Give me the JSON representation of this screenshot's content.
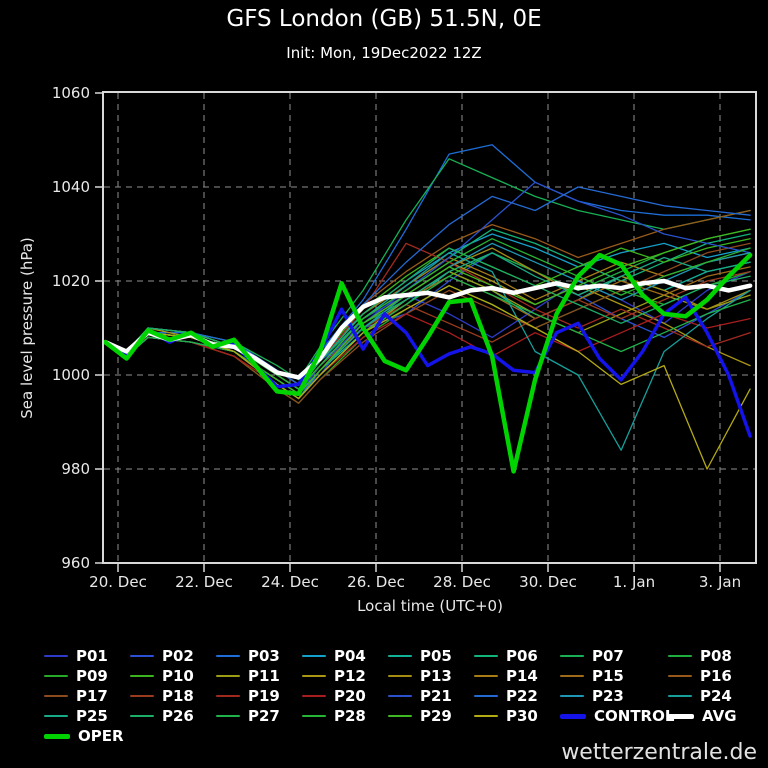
{
  "header": {
    "title": "GFS London (GB) 51.5N, 0E",
    "subtitle": "Init: Mon, 19Dec2022 12Z"
  },
  "footer": {
    "watermark": "wetterzentrale.de"
  },
  "chart_data": {
    "type": "line",
    "title": "GFS London (GB) 51.5N, 0E",
    "subtitle": "Init: Mon, 19Dec2022 12Z",
    "xlabel": "Local time (UTC+0)",
    "ylabel": "Sea level pressure (hPa)",
    "ylim": [
      960,
      1060
    ],
    "y_ticks": [
      960,
      980,
      1000,
      1020,
      1040,
      1060
    ],
    "x_ticks_days": [
      0,
      2,
      4,
      6,
      8,
      10,
      12,
      14
    ],
    "x_tick_labels": [
      "20. Dec",
      "22. Dec",
      "24. Dec",
      "26. Dec",
      "28. Dec",
      "30. Dec",
      "1. Jan",
      "3. Jan"
    ],
    "x_range_days": [
      -0.35,
      14.82
    ],
    "grid": "dashed",
    "legend_position": "bottom",
    "x_main": [
      -0.3,
      0.2,
      0.7,
      1.2,
      1.7,
      2.2,
      2.7,
      3.2,
      3.7,
      4.2,
      4.7,
      5.2,
      5.7,
      6.2,
      6.7,
      7.2,
      7.7,
      8.2,
      8.7,
      9.2,
      9.7,
      10.2,
      10.7,
      11.2,
      11.7,
      12.2,
      12.7,
      13.2,
      13.7,
      14.2,
      14.7
    ],
    "x_members": [
      -0.3,
      0.2,
      0.7,
      1.7,
      2.7,
      3.7,
      4.2,
      4.7,
      5.7,
      6.7,
      7.7,
      8.7,
      9.7,
      10.7,
      11.7,
      12.7,
      13.7,
      14.7
    ],
    "main_series": [
      {
        "name": "CONTROL",
        "color": "#1313ea",
        "width": 3.5,
        "values": [
          1007,
          1004,
          1009.5,
          1007,
          1009,
          1006,
          1006.5,
          1002,
          997.5,
          998,
          1005,
          1014,
          1005.5,
          1013,
          1009,
          1002,
          1004.5,
          1006,
          1004.5,
          1001,
          1000.5,
          1009,
          1011,
          1003.5,
          999,
          1005,
          1013,
          1016.5,
          1009,
          1000,
          987
        ]
      },
      {
        "name": "AVG",
        "color": "#ffffff",
        "width": 4.5,
        "values": [
          1007,
          1005,
          1009,
          1007.5,
          1008.5,
          1006.5,
          1006,
          1003.5,
          1000.5,
          999.5,
          1003.5,
          1010,
          1014.5,
          1016.5,
          1017,
          1017.5,
          1016.5,
          1018,
          1018.5,
          1017.5,
          1018.5,
          1019.5,
          1018.5,
          1019,
          1018.5,
          1019.5,
          1020,
          1018.5,
          1019,
          1018,
          1019
        ]
      },
      {
        "name": "OPER",
        "color": "#00d400",
        "width": 4.5,
        "values": [
          1007,
          1003.5,
          1009.5,
          1007.5,
          1009,
          1006,
          1007.5,
          1002,
          996.5,
          996,
          1005,
          1019.5,
          1010,
          1003,
          1001,
          1008,
          1015.5,
          1016,
          1004,
          979.5,
          999,
          1013,
          1021,
          1025.5,
          1023.5,
          1017,
          1013,
          1012.5,
          1016,
          1021,
          1025.5
        ]
      }
    ],
    "members": [
      {
        "name": "P01",
        "color": "#2e3bc8",
        "values": [
          1007,
          1004,
          1009,
          1008,
          1005,
          999,
          996,
          1000,
          1012,
          1017,
          1013,
          1008,
          1014,
          1020,
          1016,
          1011,
          1018,
          1022
        ]
      },
      {
        "name": "P02",
        "color": "#2b51d2",
        "values": [
          1007,
          1005,
          1010,
          1008,
          1006,
          1000,
          997,
          1003,
          1010,
          1013,
          1020,
          1026,
          1022,
          1017,
          1012,
          1008,
          1013,
          1018
        ]
      },
      {
        "name": "P03",
        "color": "#1d6ed8",
        "values": [
          1007,
          1004,
          1009,
          1009,
          1007,
          1001,
          998,
          1005,
          1016,
          1031,
          1047,
          1049,
          1041,
          1037,
          1035,
          1034,
          1034,
          1033
        ]
      },
      {
        "name": "P04",
        "color": "#15a0cb",
        "values": [
          1007,
          1005,
          1010,
          1009,
          1006,
          1001,
          998,
          1004,
          1013,
          1020,
          1026,
          1030,
          1027,
          1023,
          1026,
          1028,
          1025,
          1027
        ]
      },
      {
        "name": "P05",
        "color": "#12b298",
        "values": [
          1007,
          1004,
          1008,
          1007,
          1005,
          998,
          995,
          1001,
          1009,
          1015,
          1022,
          1018,
          1012,
          1016,
          1021,
          1018,
          1022,
          1024
        ]
      },
      {
        "name": "P06",
        "color": "#12b479",
        "values": [
          1007,
          1005,
          1009,
          1008,
          1006,
          1000,
          997,
          1002,
          1012,
          1019,
          1025,
          1031,
          1028,
          1024,
          1020,
          1024,
          1028,
          1030
        ]
      },
      {
        "name": "P07",
        "color": "#17b055",
        "values": [
          1007,
          1004,
          1010,
          1009,
          1007,
          1002,
          999,
          1006,
          1018,
          1033,
          1046,
          1042,
          1038,
          1035,
          1033,
          1031,
          1033,
          1035
        ]
      },
      {
        "name": "P08",
        "color": "#1fae3e",
        "values": [
          1007,
          1005,
          1009,
          1008,
          1005,
          999,
          996,
          1002,
          1011,
          1016,
          1021,
          1026,
          1022,
          1018,
          1022,
          1026,
          1029,
          1031
        ]
      },
      {
        "name": "P09",
        "color": "#27a827",
        "values": [
          1007,
          1004,
          1008,
          1007,
          1004,
          997,
          994,
          999,
          1008,
          1014,
          1019,
          1015,
          1010,
          1014,
          1018,
          1015,
          1019,
          1022
        ]
      },
      {
        "name": "P10",
        "color": "#3cb41e",
        "values": [
          1007,
          1005,
          1010,
          1009,
          1006,
          1001,
          998,
          1004,
          1014,
          1021,
          1027,
          1023,
          1019,
          1023,
          1027,
          1024,
          1027,
          1029
        ]
      },
      {
        "name": "P11",
        "color": "#9c9c15",
        "values": [
          1007,
          1004,
          1009,
          1008,
          1005,
          998,
          995,
          1000,
          1009,
          1016,
          1022,
          1018,
          1013,
          1009,
          1013,
          1017,
          1014,
          1017
        ]
      },
      {
        "name": "P12",
        "color": "#ab9713",
        "values": [
          1007,
          1005,
          1010,
          1008,
          1006,
          1000,
          997,
          1002,
          1012,
          1018,
          1024,
          1020,
          1015,
          1019,
          1015,
          1011,
          1006,
          1002
        ]
      },
      {
        "name": "P13",
        "color": "#a58d14",
        "values": [
          1007,
          1004,
          1008,
          1007,
          1005,
          999,
          996,
          1001,
          1011,
          1017,
          1023,
          1027,
          1022,
          1017,
          1021,
          1018,
          1014,
          1018
        ]
      },
      {
        "name": "P14",
        "color": "#a87d16",
        "values": [
          1007,
          1005,
          1009,
          1008,
          1006,
          1000,
          997,
          1003,
          1013,
          1019,
          1025,
          1021,
          1016,
          1020,
          1024,
          1021,
          1024,
          1026
        ]
      },
      {
        "name": "P15",
        "color": "#a06b18",
        "values": [
          1007,
          1004,
          1009,
          1008,
          1005,
          998,
          995,
          1001,
          1010,
          1016,
          1021,
          1017,
          1012,
          1016,
          1020,
          1017,
          1021,
          1023
        ]
      },
      {
        "name": "P16",
        "color": "#985a1a",
        "values": [
          1007,
          1005,
          1010,
          1009,
          1006,
          1001,
          998,
          1004,
          1015,
          1022,
          1028,
          1032,
          1029,
          1025,
          1028,
          1031,
          1033,
          1035
        ]
      },
      {
        "name": "P17",
        "color": "#8d4a1d",
        "values": [
          1007,
          1004,
          1008,
          1007,
          1004,
          997,
          994,
          999,
          1007,
          1013,
          1018,
          1014,
          1010,
          1014,
          1018,
          1022,
          1026,
          1028
        ]
      },
      {
        "name": "P18",
        "color": "#9a3c1e",
        "values": [
          1007,
          1005,
          1009,
          1008,
          1005,
          999,
          996,
          1002,
          1010,
          1015,
          1011,
          1007,
          1012,
          1016,
          1012,
          1016,
          1020,
          1022
        ]
      },
      {
        "name": "P19",
        "color": "#a12a20",
        "values": [
          1007,
          1004,
          1009,
          1008,
          1006,
          1000,
          997,
          1003,
          1014,
          1028,
          1024,
          1019,
          1014,
          1010,
          1014,
          1010,
          1006,
          1009
        ]
      },
      {
        "name": "P20",
        "color": "#a81e1e",
        "values": [
          1007,
          1005,
          1008,
          1007,
          1004,
          998,
          995,
          1000,
          1008,
          1013,
          1009,
          1004,
          1009,
          1005,
          1009,
          1013,
          1010,
          1012
        ]
      },
      {
        "name": "P21",
        "color": "#2a52cc",
        "values": [
          1007,
          1004,
          1009,
          1008,
          1005,
          999,
          996,
          1002,
          1011,
          1018,
          1025,
          1033,
          1041,
          1037,
          1034,
          1030,
          1028,
          1026
        ]
      },
      {
        "name": "P22",
        "color": "#2569d2",
        "values": [
          1007,
          1005,
          1010,
          1009,
          1007,
          1001,
          998,
          1005,
          1015,
          1024,
          1032,
          1038,
          1035,
          1040,
          1038,
          1036,
          1035,
          1034
        ]
      },
      {
        "name": "P23",
        "color": "#1e96b4",
        "values": [
          1007,
          1004,
          1008,
          1007,
          1005,
          998,
          995,
          1001,
          1010,
          1017,
          1023,
          1028,
          1024,
          1020,
          1016,
          1020,
          1024,
          1026
        ]
      },
      {
        "name": "P24",
        "color": "#16a09b",
        "values": [
          1007,
          1005,
          1009,
          1008,
          1006,
          1000,
          997,
          1003,
          1012,
          1019,
          1026,
          1022,
          1005,
          1000,
          984,
          1005,
          1012,
          1018
        ]
      },
      {
        "name": "P25",
        "color": "#18aa86",
        "values": [
          1007,
          1004,
          1009,
          1008,
          1005,
          999,
          996,
          1001,
          1010,
          1016,
          1022,
          1026,
          1021,
          1017,
          1021,
          1025,
          1022,
          1024
        ]
      },
      {
        "name": "P26",
        "color": "#1cae66",
        "values": [
          1007,
          1005,
          1010,
          1009,
          1006,
          1000,
          997,
          1003,
          1013,
          1020,
          1027,
          1023,
          1019,
          1015,
          1011,
          1015,
          1019,
          1021
        ]
      },
      {
        "name": "P27",
        "color": "#20b24a",
        "values": [
          1007,
          1004,
          1008,
          1007,
          1005,
          998,
          995,
          1000,
          1009,
          1015,
          1021,
          1017,
          1013,
          1009,
          1005,
          1009,
          1013,
          1016
        ]
      },
      {
        "name": "P28",
        "color": "#28b434",
        "values": [
          1007,
          1005,
          1009,
          1008,
          1006,
          1000,
          997,
          1002,
          1012,
          1018,
          1024,
          1029,
          1025,
          1021,
          1017,
          1021,
          1024,
          1027
        ]
      },
      {
        "name": "P29",
        "color": "#40b822",
        "values": [
          1007,
          1004,
          1009,
          1008,
          1005,
          999,
          996,
          1001,
          1011,
          1017,
          1023,
          1019,
          1015,
          1019,
          1023,
          1026,
          1029,
          1031
        ]
      },
      {
        "name": "P30",
        "color": "#b4aa15",
        "values": [
          1007,
          1005,
          1009,
          1008,
          1005,
          998,
          995,
          1000,
          1009,
          1014,
          1019,
          1015,
          1010,
          1005,
          998,
          1002,
          980,
          997
        ]
      }
    ]
  },
  "style": {
    "background": "#000000",
    "frame_color": "#d9d9d9",
    "grid_color": "#8f8f8f",
    "tick_label_color": "#e8e8e8"
  }
}
